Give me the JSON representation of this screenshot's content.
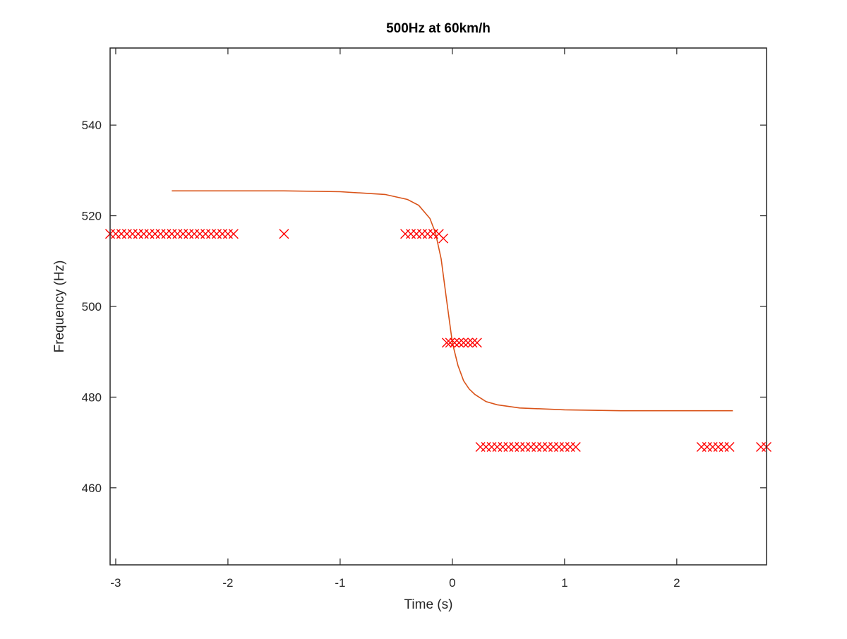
{
  "chart_data": {
    "type": "scatter",
    "title": "500Hz at 60km/h",
    "xlabel": "Time (s)",
    "ylabel": "Frequency (Hz)",
    "xlim": [
      -3.05,
      2.8
    ],
    "ylim": [
      443,
      557
    ],
    "xticks": [
      -3,
      -2,
      -1,
      0,
      1,
      2
    ],
    "yticks": [
      460,
      480,
      500,
      520,
      540
    ],
    "xtick_labels": [
      "-3",
      "-2",
      "-1",
      "0",
      "1",
      "2"
    ],
    "ytick_labels": [
      "460",
      "480",
      "500",
      "520",
      "540"
    ],
    "grid": false,
    "box": true,
    "series": [
      {
        "kind": "line",
        "color": "#d95319",
        "x": [
          -2.5,
          -1.5,
          -1.0,
          -0.6,
          -0.4,
          -0.3,
          -0.2,
          -0.15,
          -0.1,
          -0.05,
          0.0,
          0.05,
          0.1,
          0.15,
          0.2,
          0.3,
          0.4,
          0.6,
          1.0,
          1.5,
          2.5
        ],
        "y": [
          525.5,
          525.5,
          525.3,
          524.7,
          523.6,
          522.3,
          519.4,
          516.2,
          510.5,
          501.2,
          492.0,
          487.0,
          483.6,
          481.8,
          480.6,
          479.0,
          478.3,
          477.6,
          477.2,
          477.0,
          477.0
        ]
      },
      {
        "kind": "marker",
        "marker": "x",
        "color": "#ff0000",
        "x": [
          -3.05,
          -3.0,
          -2.95,
          -2.9,
          -2.85,
          -2.8,
          -2.75,
          -2.7,
          -2.65,
          -2.6,
          -2.55,
          -2.5,
          -2.45,
          -2.4,
          -2.35,
          -2.3,
          -2.25,
          -2.2,
          -2.15,
          -2.1,
          -2.05,
          -2.0,
          -1.95,
          -1.5,
          -0.42,
          -0.37,
          -0.32,
          -0.27,
          -0.22,
          -0.17,
          -0.12,
          -0.08,
          -0.05,
          -0.02,
          0.02,
          0.06,
          0.1,
          0.14,
          0.18,
          0.22,
          0.25,
          0.3,
          0.35,
          0.4,
          0.45,
          0.5,
          0.55,
          0.6,
          0.65,
          0.7,
          0.75,
          0.8,
          0.85,
          0.9,
          0.95,
          1.0,
          1.05,
          1.1,
          2.22,
          2.27,
          2.32,
          2.37,
          2.42,
          2.47,
          2.75,
          2.8
        ],
        "y": [
          516,
          516,
          516,
          516,
          516,
          516,
          516,
          516,
          516,
          516,
          516,
          516,
          516,
          516,
          516,
          516,
          516,
          516,
          516,
          516,
          516,
          516,
          516,
          516,
          516,
          516,
          516,
          516,
          516,
          516,
          516,
          515,
          492,
          492,
          492,
          492,
          492,
          492,
          492,
          492,
          469,
          469,
          469,
          469,
          469,
          469,
          469,
          469,
          469,
          469,
          469,
          469,
          469,
          469,
          469,
          469,
          469,
          469,
          469,
          469,
          469,
          469,
          469,
          469,
          469,
          469
        ]
      }
    ]
  }
}
